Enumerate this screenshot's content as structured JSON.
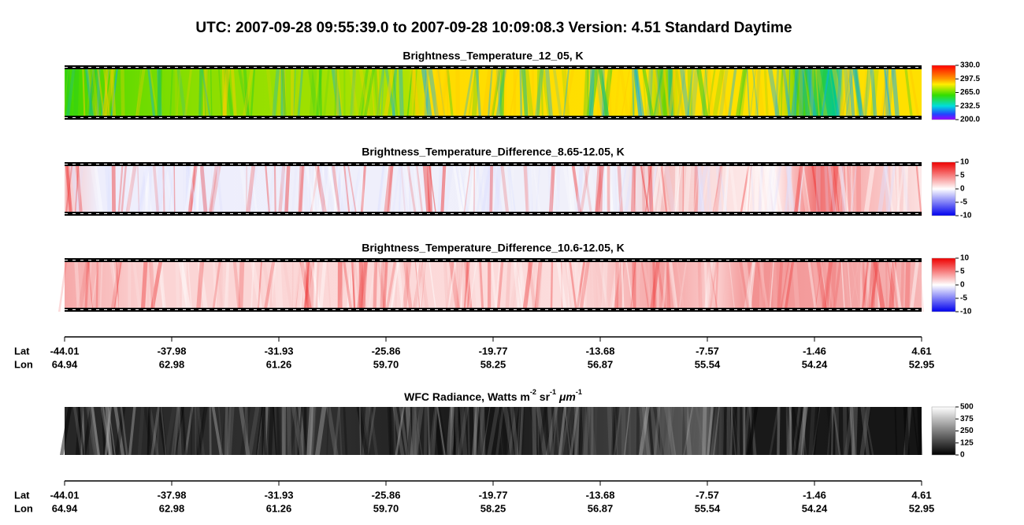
{
  "title": "UTC:  2007-09-28   09:55:39.0  to  2007-09-28   10:09:08.3    Version: 4.51  Standard Daytime",
  "panels": [
    {
      "title": "Brightness_Temperature_12_05, K",
      "colorbar_ticks": [
        "330.0",
        "297.5",
        "265.0",
        "232.5",
        "200.0"
      ]
    },
    {
      "title": "Brightness_Temperature_Difference_8.65-12.05, K",
      "colorbar_ticks": [
        "10",
        "5",
        "0",
        "-5",
        "-10"
      ]
    },
    {
      "title": "Brightness_Temperature_Difference_10.6-12.05, K",
      "colorbar_ticks": [
        "10",
        "5",
        "0",
        "-5",
        "-10"
      ]
    },
    {
      "title_parts": [
        "WFC Radiance, Watts m",
        "-2",
        " sr",
        "-1",
        " ",
        "μm",
        "-1"
      ],
      "colorbar_ticks": [
        "500",
        "375",
        "250",
        "125",
        "0"
      ]
    }
  ],
  "axes": [
    {
      "lat_label": "Lat",
      "lon_label": "Lon",
      "lat": [
        "-44.01",
        "-37.98",
        "-31.93",
        "-25.86",
        "-19.77",
        "-13.68",
        "-7.57",
        "-1.46",
        "4.61"
      ],
      "lon": [
        "64.94",
        "62.98",
        "61.26",
        "59.70",
        "58.25",
        "56.87",
        "55.54",
        "54.24",
        "52.95"
      ]
    },
    {
      "lat_label": "Lat",
      "lon_label": "Lon",
      "lat": [
        "-44.01",
        "-37.98",
        "-31.93",
        "-25.86",
        "-19.77",
        "-13.68",
        "-7.57",
        "-1.46",
        "4.61"
      ],
      "lon": [
        "64.94",
        "62.98",
        "61.26",
        "59.70",
        "58.25",
        "56.87",
        "55.54",
        "54.24",
        "52.95"
      ]
    }
  ]
}
